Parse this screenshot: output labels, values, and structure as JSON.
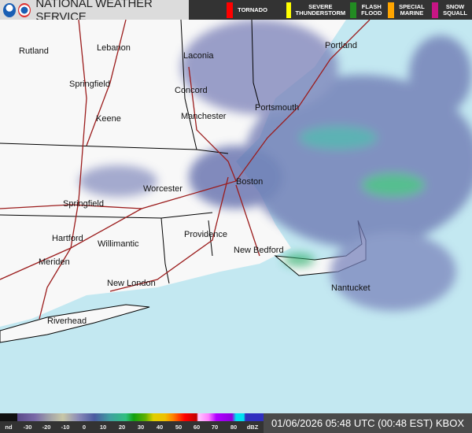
{
  "header": {
    "title": "NATIONAL WEATHER SERVICE",
    "logos": [
      "noaa-logo",
      "nws-logo"
    ]
  },
  "warnings": [
    {
      "label": "TORNADO",
      "color": "#ff0000"
    },
    {
      "label": "SEVERE\nTHUNDERSTORM",
      "color": "#ffff00"
    },
    {
      "label": "FLASH\nFLOOD",
      "color": "#228b22"
    },
    {
      "label": "SPECIAL\nMARINE",
      "color": "#ffa500"
    },
    {
      "label": "SNOW\nSQUALL",
      "color": "#c71585"
    }
  ],
  "cities": [
    {
      "name": "Rutland"
    },
    {
      "name": "Lebanon"
    },
    {
      "name": "Laconia"
    },
    {
      "name": "Portland"
    },
    {
      "name": "Springfield"
    },
    {
      "name": "Concord"
    },
    {
      "name": "Portsmouth"
    },
    {
      "name": "Keene"
    },
    {
      "name": "Manchester"
    },
    {
      "name": "Worcester"
    },
    {
      "name": "Boston"
    },
    {
      "name": "Springfield"
    },
    {
      "name": "Hartford"
    },
    {
      "name": "Willimantic"
    },
    {
      "name": "Providence"
    },
    {
      "name": "New Bedford"
    },
    {
      "name": "Meriden"
    },
    {
      "name": "New London"
    },
    {
      "name": "Nantucket"
    },
    {
      "name": "Riverhead"
    }
  ],
  "legend": {
    "ticks": [
      "nd",
      "-30",
      "-20",
      "-10",
      "0",
      "10",
      "20",
      "30",
      "40",
      "50",
      "60",
      "70",
      "80",
      "dBZ"
    ]
  },
  "timestamp": "01/06/2026 05:48 UTC (00:48 EST) KBOX"
}
